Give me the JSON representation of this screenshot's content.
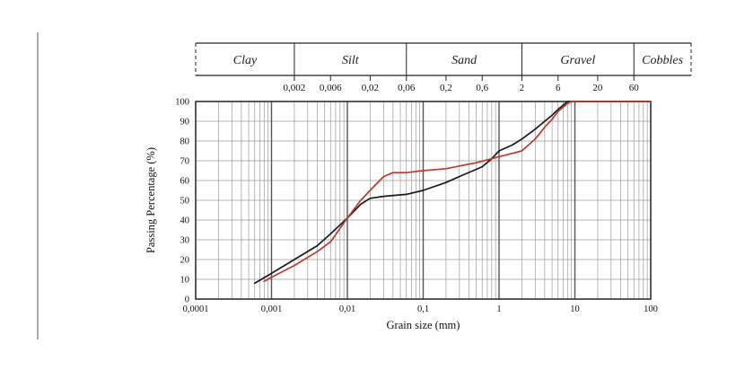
{
  "figure": {
    "background": "#ffffff",
    "curve_black_color": "#1a1a1a",
    "curve_red_color": "#c0392b",
    "grid_minor_color": "#9a9a9a",
    "grid_major_color": "#555555",
    "frame_color": "#222222"
  },
  "chart_data": {
    "type": "line",
    "title": "",
    "xlabel": "Grain size (mm)",
    "ylabel": "Passing Percentage (%)",
    "x_scale": "log",
    "xlim": [
      0.0001,
      100
    ],
    "ylim": [
      0,
      100
    ],
    "grid": true,
    "legend": "none",
    "x_ticks": [
      {
        "value": 0.0001,
        "label": "0,0001"
      },
      {
        "value": 0.001,
        "label": "0,001"
      },
      {
        "value": 0.01,
        "label": "0,01"
      },
      {
        "value": 0.1,
        "label": "0,1"
      },
      {
        "value": 1,
        "label": "1"
      },
      {
        "value": 10,
        "label": "10"
      },
      {
        "value": 100,
        "label": "100"
      }
    ],
    "y_ticks": [
      {
        "value": 0,
        "label": "0"
      },
      {
        "value": 10,
        "label": "10"
      },
      {
        "value": 20,
        "label": "20"
      },
      {
        "value": 30,
        "label": "30"
      },
      {
        "value": 40,
        "label": "40"
      },
      {
        "value": 50,
        "label": "50"
      },
      {
        "value": 60,
        "label": "60"
      },
      {
        "value": 70,
        "label": "70"
      },
      {
        "value": 80,
        "label": "80"
      },
      {
        "value": 90,
        "label": "90"
      },
      {
        "value": 100,
        "label": "100"
      }
    ],
    "classification": {
      "segments": [
        {
          "label": "Clay",
          "from": null,
          "to": 0.002
        },
        {
          "label": "Silt",
          "from": 0.002,
          "to": 0.06
        },
        {
          "label": "Sand",
          "from": 0.06,
          "to": 2
        },
        {
          "label": "Gravel",
          "from": 2,
          "to": 60
        },
        {
          "label": "Cobbles",
          "from": 60,
          "to": null
        }
      ],
      "boundary_labels": [
        {
          "value": 0.002,
          "label": "0,002"
        },
        {
          "value": 0.006,
          "label": "0,006"
        },
        {
          "value": 0.02,
          "label": "0,02"
        },
        {
          "value": 0.06,
          "label": "0,06"
        },
        {
          "value": 0.2,
          "label": "0,2"
        },
        {
          "value": 0.6,
          "label": "0,6"
        },
        {
          "value": 2,
          "label": "2"
        },
        {
          "value": 6,
          "label": "6"
        },
        {
          "value": 20,
          "label": "20"
        },
        {
          "value": 60,
          "label": "60"
        }
      ]
    },
    "series": [
      {
        "name": "black-curve",
        "color": "#1a1a1a",
        "points": [
          [
            0.0006,
            8
          ],
          [
            0.001,
            13
          ],
          [
            0.002,
            20
          ],
          [
            0.004,
            27
          ],
          [
            0.006,
            33
          ],
          [
            0.01,
            41
          ],
          [
            0.015,
            48
          ],
          [
            0.02,
            51
          ],
          [
            0.03,
            52
          ],
          [
            0.06,
            53
          ],
          [
            0.1,
            55
          ],
          [
            0.2,
            59
          ],
          [
            0.3,
            62
          ],
          [
            0.6,
            67
          ],
          [
            0.8,
            71
          ],
          [
            1,
            75
          ],
          [
            1.5,
            78
          ],
          [
            2,
            81
          ],
          [
            3,
            86
          ],
          [
            4,
            90
          ],
          [
            5,
            93
          ],
          [
            6,
            96
          ],
          [
            8,
            100
          ],
          [
            100,
            100
          ]
        ]
      },
      {
        "name": "red-curve",
        "color": "#c0392b",
        "points": [
          [
            0.0008,
            9
          ],
          [
            0.001,
            11
          ],
          [
            0.002,
            17
          ],
          [
            0.004,
            24
          ],
          [
            0.006,
            29
          ],
          [
            0.01,
            41
          ],
          [
            0.015,
            50
          ],
          [
            0.02,
            55
          ],
          [
            0.03,
            62
          ],
          [
            0.04,
            64
          ],
          [
            0.06,
            64
          ],
          [
            0.1,
            65
          ],
          [
            0.2,
            66
          ],
          [
            0.5,
            69
          ],
          [
            1,
            72
          ],
          [
            2,
            75
          ],
          [
            3,
            81
          ],
          [
            4,
            87
          ],
          [
            5,
            91
          ],
          [
            6,
            95
          ],
          [
            8,
            99
          ],
          [
            9,
            100
          ],
          [
            100,
            100
          ]
        ]
      }
    ]
  }
}
